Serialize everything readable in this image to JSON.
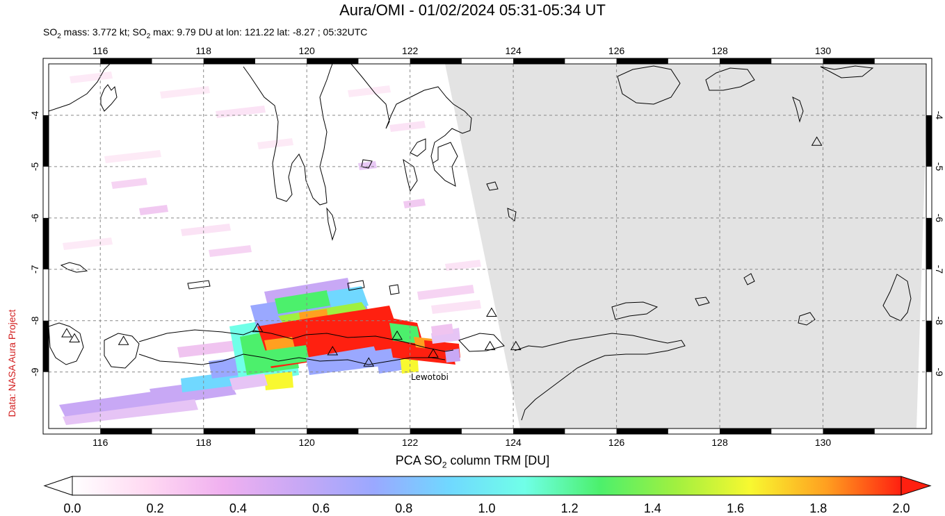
{
  "header": {
    "title": "Aura/OMI - 01/02/2024 05:31-05:34 UT",
    "subtitle_parts": {
      "p1": "SO",
      "s1": "2",
      "p2": " mass: 3.772 kt; SO",
      "s2": "2",
      "p3": " max: 9.79 DU at lon: 121.22 lat: -8.27 ; 05:32UTC"
    }
  },
  "credit": "Data: NASA Aura Project",
  "map": {
    "lon_range": [
      115,
      132
    ],
    "lat_range": [
      -10.1,
      -3.0
    ],
    "lon_ticks": [
      "116",
      "118",
      "120",
      "122",
      "124",
      "126",
      "128",
      "130"
    ],
    "lat_ticks": [
      "-4",
      "-5",
      "-6",
      "-7",
      "-8",
      "-9"
    ],
    "colors": {
      "land_outline": "#000000",
      "no_data": "#e3e3e3",
      "grid": "#888888"
    },
    "volcano_label": "Lewotobi",
    "volcanoes": [
      {
        "lon": 115.35,
        "lat": -8.25
      },
      {
        "lon": 115.5,
        "lat": -8.35
      },
      {
        "lon": 116.45,
        "lat": -8.4
      },
      {
        "lon": 119.05,
        "lat": -8.15
      },
      {
        "lon": 120.5,
        "lat": -8.6
      },
      {
        "lon": 121.2,
        "lat": -8.82
      },
      {
        "lon": 121.75,
        "lat": -8.3
      },
      {
        "lon": 122.45,
        "lat": -8.65
      },
      {
        "lon": 123.58,
        "lat": -7.85
      },
      {
        "lon": 123.55,
        "lat": -8.5
      },
      {
        "lon": 124.05,
        "lat": -8.5
      },
      {
        "lon": 129.88,
        "lat": -4.52
      }
    ]
  },
  "colorbar": {
    "title_parts": {
      "p1": "PCA SO",
      "s1": "2",
      "p2": " column TRM [DU]"
    },
    "ticks": [
      "0.0",
      "0.2",
      "0.4",
      "0.6",
      "0.8",
      "1.0",
      "1.2",
      "1.4",
      "1.6",
      "1.8",
      "2.0"
    ],
    "range": [
      0,
      2
    ],
    "stops": [
      "#ffffff",
      "#ffd9f2",
      "#f0b0f0",
      "#c8a8f5",
      "#9aa8ff",
      "#70d8ff",
      "#70ffe8",
      "#4cf06c",
      "#a0f040",
      "#f8f830",
      "#ffa020",
      "#ff2010"
    ]
  }
}
